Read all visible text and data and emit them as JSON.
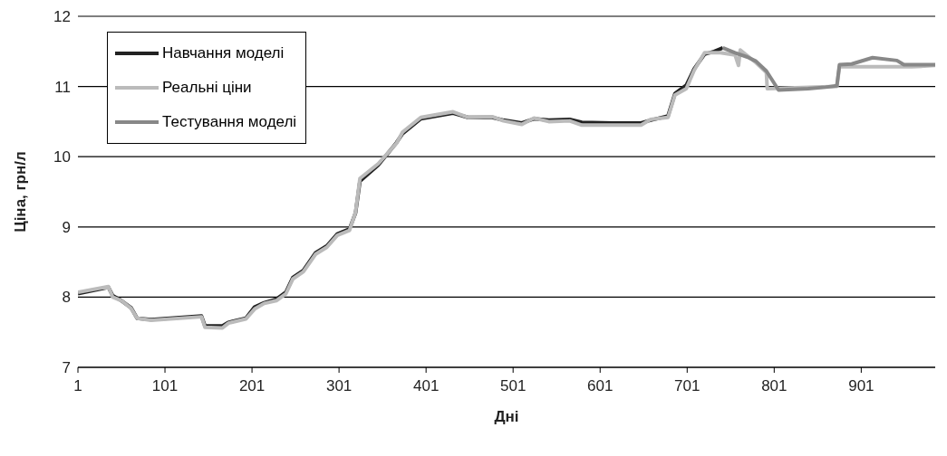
{
  "chart_data": {
    "type": "line",
    "xlabel": "Дні",
    "ylabel": "Ціна, грн/л",
    "xlim": [
      1,
      986
    ],
    "xticks": [
      1,
      101,
      201,
      301,
      401,
      501,
      601,
      701,
      801,
      901
    ],
    "ylim": [
      7,
      12
    ],
    "yticks": [
      7,
      8,
      9,
      10,
      11,
      12
    ],
    "grid": "y",
    "legend": "top left",
    "marker": "none",
    "line_style": "solid",
    "series": [
      {
        "name": "Навчання моделі",
        "color": "#222222",
        "x": [
          1,
          36,
          41,
          51,
          62,
          69,
          85,
          143,
          147,
          167,
          174,
          194,
          204,
          215,
          229,
          240,
          248,
          260,
          274,
          287,
          299,
          313,
          320,
          325,
          346,
          367,
          374,
          395,
          432,
          449,
          477,
          490,
          511,
          525,
          542,
          566,
          580,
          615,
          648,
          659,
          679,
          687,
          700,
          709,
          721,
          732,
          742
        ],
        "values": [
          8.05,
          8.14,
          8.02,
          7.95,
          7.85,
          7.7,
          7.68,
          7.73,
          7.59,
          7.59,
          7.64,
          7.7,
          7.86,
          7.92,
          7.97,
          8.07,
          8.28,
          8.38,
          8.63,
          8.73,
          8.9,
          8.97,
          9.2,
          9.65,
          9.88,
          10.2,
          10.33,
          10.54,
          10.62,
          10.56,
          10.56,
          10.52,
          10.48,
          10.54,
          10.52,
          10.53,
          10.49,
          10.48,
          10.48,
          10.52,
          10.58,
          10.9,
          11.02,
          11.25,
          11.46,
          11.5,
          11.55
        ]
      },
      {
        "name": "Реальні ціни",
        "color": "#bbbbbb",
        "x": [
          1,
          36,
          41,
          51,
          62,
          69,
          85,
          143,
          147,
          167,
          174,
          194,
          204,
          215,
          229,
          240,
          248,
          260,
          274,
          287,
          299,
          313,
          320,
          325,
          346,
          367,
          374,
          395,
          432,
          449,
          477,
          490,
          511,
          525,
          542,
          566,
          580,
          615,
          648,
          659,
          679,
          687,
          700,
          709,
          721,
          739,
          756,
          760,
          762,
          780,
          792,
          793,
          873,
          876,
          959,
          986
        ],
        "values": [
          8.07,
          8.15,
          8.0,
          7.95,
          7.84,
          7.7,
          7.67,
          7.72,
          7.57,
          7.56,
          7.63,
          7.69,
          7.83,
          7.91,
          7.95,
          8.05,
          8.26,
          8.36,
          8.61,
          8.71,
          8.88,
          8.95,
          9.21,
          9.69,
          9.9,
          10.19,
          10.35,
          10.56,
          10.64,
          10.56,
          10.57,
          10.51,
          10.46,
          10.55,
          10.5,
          10.51,
          10.45,
          10.45,
          10.45,
          10.53,
          10.56,
          10.88,
          10.97,
          11.23,
          11.48,
          11.48,
          11.45,
          11.3,
          11.52,
          11.34,
          11.2,
          10.97,
          11.0,
          11.28,
          11.28,
          11.3
        ]
      },
      {
        "name": "Тестування моделі",
        "color": "#888888",
        "x": [
          742,
          756,
          770,
          780,
          792,
          806,
          840,
          860,
          873,
          876,
          890,
          914,
          942,
          950,
          986
        ],
        "values": [
          11.55,
          11.48,
          11.42,
          11.36,
          11.22,
          10.95,
          10.97,
          10.99,
          11.01,
          11.31,
          11.32,
          11.41,
          11.37,
          11.31,
          11.31
        ]
      }
    ]
  }
}
